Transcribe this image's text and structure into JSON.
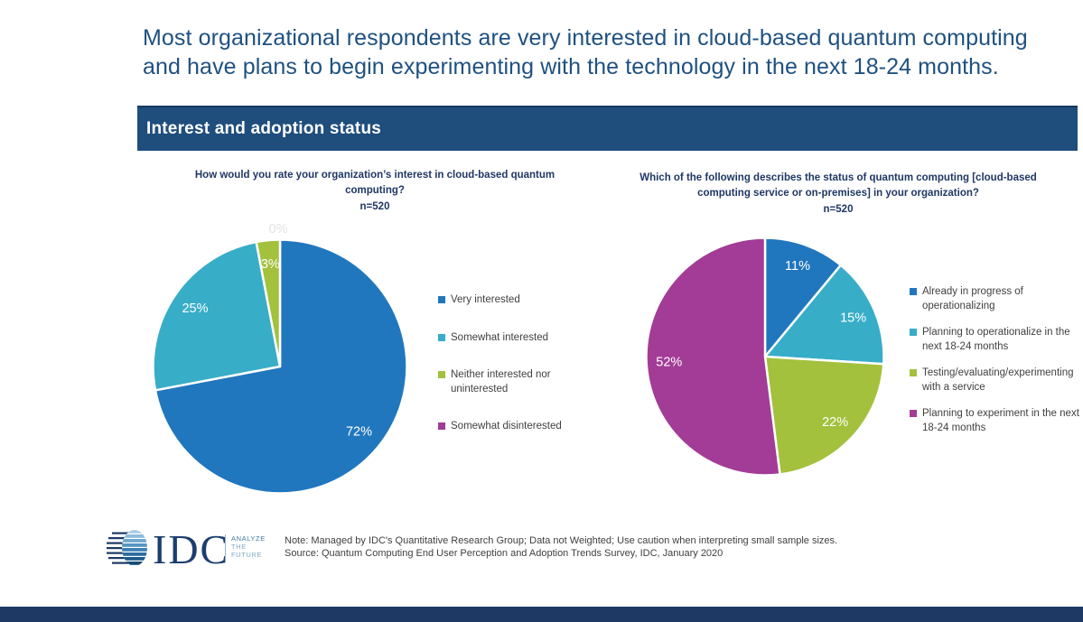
{
  "slide": {
    "title": "Most organizational respondents are very interested in cloud-based quantum computing and have plans to begin experimenting with the technology in the next 18-24 months.",
    "banner": "Interest and adoption status",
    "footer": {
      "note": "Note: Managed by IDC's Quantitative Research Group; Data not Weighted; Use caution when interpreting small sample sizes.",
      "source": "Source: Quantum Computing End User Perception and Adoption Trends Survey, IDC, January 2020",
      "logo_text": "IDC",
      "logo_tagline_lines": [
        "ANALYZE",
        "THE",
        "FUTURE"
      ]
    }
  },
  "colors": {
    "title_text": "#1F5180",
    "banner_bg": "#1F4E7D",
    "chart_title_text": "#1F3864",
    "bottom_bar": "#1E3A64",
    "data_label_text": "#FFFFFF",
    "zero_label_text": "#E3E3E3",
    "slice_blue": "#2177BE",
    "slice_teal": "#38ADC8",
    "slice_green": "#A3C13C",
    "slice_purple": "#A23C96"
  },
  "chart_data": [
    {
      "type": "pie",
      "title": "How would you rate your organization’s interest in cloud-based quantum computing?",
      "subtitle": "n=520",
      "labels": [
        "Very interested",
        "Somewhat interested",
        "Neither interested nor uninterested",
        "Somewhat disinterested"
      ],
      "values": [
        72,
        25,
        3,
        0
      ],
      "unit": "%",
      "colors": [
        "#2177BE",
        "#38ADC8",
        "#A3C13C",
        "#A23C96"
      ],
      "start_angle_deg": 0,
      "direction": "clockwise",
      "legend_position": "right",
      "data_labels": [
        "72%",
        "25%",
        "3%",
        "0%"
      ]
    },
    {
      "type": "pie",
      "title": "Which of the following describes the status of quantum computing [cloud-based computing service or on-premises] in your organization?",
      "subtitle": "n=520",
      "labels": [
        "Already in progress of operationalizing",
        "Planning to operationalize in the next 18-24 months",
        "Testing/evaluating/experimenting with a service",
        "Planning to experiment in the next 18-24 months"
      ],
      "values": [
        11,
        15,
        22,
        52
      ],
      "unit": "%",
      "colors": [
        "#2177BE",
        "#38ADC8",
        "#A3C13C",
        "#A23C96"
      ],
      "start_angle_deg": 0,
      "direction": "clockwise",
      "legend_position": "right",
      "data_labels": [
        "11%",
        "15%",
        "22%",
        "52%"
      ]
    }
  ]
}
